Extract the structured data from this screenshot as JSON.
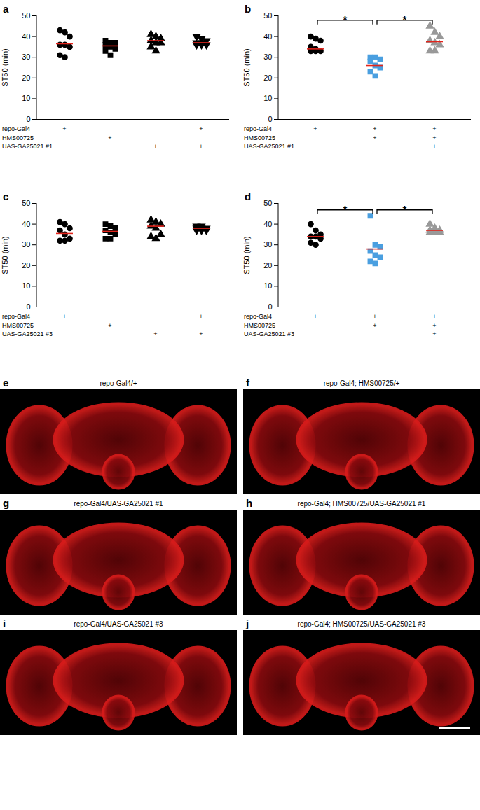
{
  "chart_data": [
    {
      "panel": "a",
      "type": "scatter",
      "ylabel": "ST50 (min)",
      "ylim": [
        0,
        50
      ],
      "yticks": [
        0,
        10,
        20,
        30,
        40,
        50
      ],
      "categories": [
        null,
        null,
        null,
        null
      ],
      "groups": [
        {
          "values": [
            43,
            42,
            40,
            36,
            36,
            35,
            31,
            30
          ],
          "marker": "circle",
          "color": "#000000"
        },
        {
          "values": [
            38,
            37,
            37,
            36,
            35,
            34,
            33,
            31
          ],
          "marker": "square",
          "color": "#000000"
        },
        {
          "values": [
            41,
            40,
            39,
            38,
            37,
            37,
            35,
            33
          ],
          "marker": "triangle",
          "color": "#000000"
        },
        {
          "values": [
            40,
            39,
            38,
            37,
            37,
            36,
            36,
            36
          ],
          "marker": "triangle-down",
          "color": "#000000"
        }
      ],
      "means": {
        "values": [
          36.5,
          35.5,
          38,
          37
        ],
        "color": "#e3241b"
      },
      "genotypes": {
        "rows": [
          "repo-Gal4",
          "HMS00725",
          "UAS-GA25021 #1"
        ],
        "cells": [
          [
            "+",
            null,
            null,
            "+"
          ],
          [
            null,
            "+",
            null,
            null
          ],
          [
            null,
            null,
            "+",
            "+"
          ]
        ]
      }
    },
    {
      "panel": "b",
      "type": "scatter",
      "ylabel": "ST50 (min)",
      "ylim": [
        0,
        50
      ],
      "yticks": [
        0,
        10,
        20,
        30,
        40,
        50
      ],
      "categories": [
        null,
        null,
        null
      ],
      "groups": [
        {
          "values": [
            40,
            39,
            38,
            35,
            34,
            33,
            33,
            33
          ],
          "marker": "circle",
          "color": "#000000"
        },
        {
          "values": [
            30,
            30,
            29,
            28,
            26,
            25,
            23,
            21
          ],
          "marker": "square",
          "color": "#4a9fe0"
        },
        {
          "values": [
            45,
            42,
            40,
            38,
            37,
            36,
            33,
            33
          ],
          "marker": "triangle",
          "color": "#999999"
        }
      ],
      "means": {
        "values": [
          34,
          26,
          37.5
        ],
        "color": "#e3241b"
      },
      "significance": [
        {
          "between": [
            0,
            1
          ],
          "label": "*"
        },
        {
          "between": [
            1,
            2
          ],
          "label": "*"
        }
      ],
      "genotypes": {
        "rows": [
          "repo-Gal4",
          "HMS00725",
          "UAS-GA25021 #1"
        ],
        "cells": [
          [
            "+",
            "+",
            "+"
          ],
          [
            null,
            "+",
            "+"
          ],
          [
            null,
            null,
            "+"
          ]
        ]
      }
    },
    {
      "panel": "c",
      "type": "scatter",
      "ylabel": "ST50 (min)",
      "ylim": [
        0,
        50
      ],
      "yticks": [
        0,
        10,
        20,
        30,
        40,
        50
      ],
      "categories": [
        null,
        null,
        null,
        null
      ],
      "groups": [
        {
          "values": [
            41,
            40,
            38,
            37,
            35,
            33,
            32,
            32
          ],
          "marker": "circle",
          "color": "#000000"
        },
        {
          "values": [
            40,
            39,
            38,
            37,
            36,
            35,
            33,
            33
          ],
          "marker": "square",
          "color": "#000000"
        },
        {
          "values": [
            42,
            41,
            40,
            39,
            38,
            35,
            34,
            33
          ],
          "marker": "triangle",
          "color": "#000000"
        },
        {
          "values": [
            39,
            39,
            38,
            38,
            38,
            37,
            37,
            37
          ],
          "marker": "triangle-down",
          "color": "#000000"
        }
      ],
      "means": {
        "values": [
          35.5,
          36.5,
          39,
          38
        ],
        "color": "#e3241b"
      },
      "genotypes": {
        "rows": [
          "repo-Gal4",
          "HMS00725",
          "UAS-GA25021 #3"
        ],
        "cells": [
          [
            "+",
            null,
            null,
            "+"
          ],
          [
            null,
            "+",
            null,
            null
          ],
          [
            null,
            null,
            "+",
            "+"
          ]
        ]
      }
    },
    {
      "panel": "d",
      "type": "scatter",
      "ylabel": "ST50 (min)",
      "ylim": [
        0,
        50
      ],
      "yticks": [
        0,
        10,
        20,
        30,
        40,
        50
      ],
      "categories": [
        null,
        null,
        null
      ],
      "groups": [
        {
          "values": [
            40,
            37,
            35,
            34,
            34,
            33,
            31,
            30
          ],
          "marker": "circle",
          "color": "#000000"
        },
        {
          "values": [
            44,
            30,
            29,
            27,
            25,
            24,
            22,
            21
          ],
          "marker": "square",
          "color": "#4a9fe0"
        },
        {
          "values": [
            40,
            38,
            37,
            37,
            37,
            36,
            36,
            36
          ],
          "marker": "triangle",
          "color": "#999999"
        }
      ],
      "means": {
        "values": [
          34,
          28,
          37
        ],
        "color": "#e3241b"
      },
      "significance": [
        {
          "between": [
            0,
            1
          ],
          "label": "*"
        },
        {
          "between": [
            1,
            2
          ],
          "label": "*"
        }
      ],
      "genotypes": {
        "rows": [
          "repo-Gal4",
          "HMS00725",
          "UAS-GA25021 #3"
        ],
        "cells": [
          [
            "+",
            "+",
            "+"
          ],
          [
            null,
            "+",
            "+"
          ],
          [
            null,
            null,
            "+"
          ]
        ]
      }
    }
  ],
  "images": [
    {
      "panel": "e",
      "title": "repo-Gal4/+"
    },
    {
      "panel": "f",
      "title": "repo-Gal4; HMS00725/+"
    },
    {
      "panel": "g",
      "title": "repo-Gal4/UAS-GA25021 #1"
    },
    {
      "panel": "h",
      "title": "repo-Gal4; HMS00725/UAS-GA25021 #1"
    },
    {
      "panel": "i",
      "title": "repo-Gal4/UAS-GA25021 #3"
    },
    {
      "panel": "j",
      "title": "repo-Gal4; HMS00725/UAS-GA25021 #3"
    }
  ]
}
